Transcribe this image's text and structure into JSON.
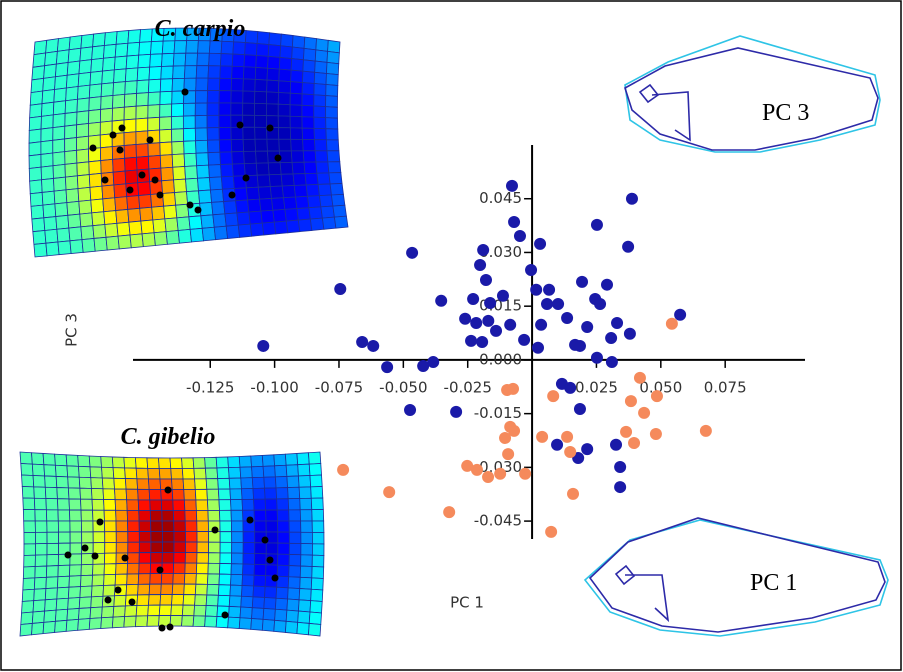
{
  "chart_data": {
    "type": "scatter",
    "x_label": "PC 1",
    "y_label": "PC 3",
    "annotations": [
      "C. carpio",
      "C. gibelio",
      "PC 3",
      "PC 1"
    ],
    "xlim": [
      -0.155,
      0.106
    ],
    "ylim": [
      -0.05,
      0.06
    ],
    "xticks": [
      -0.125,
      {
        "value": -0.1,
        "label": "-0.100"
      },
      -0.075,
      {
        "value": -0.05,
        "label": "-0.050"
      },
      -0.025,
      0.025,
      {
        "value": 0.05,
        "label": "0.050"
      },
      0.075
    ],
    "yticks": [
      0.045,
      {
        "value": 0.03,
        "label": "0.030"
      },
      0.015,
      {
        "value": 0,
        "label": "0.000"
      },
      -0.015,
      {
        "value": -0.03,
        "label": "-0.030"
      },
      -0.045
    ],
    "series": [
      {
        "color": "#1a1aa8",
        "x": [
          -0.1044,
          -0.0745,
          -0.066,
          -0.0617,
          -0.0466,
          -0.0563,
          -0.0423,
          -0.0384,
          -0.0474,
          -0.0353,
          -0.0295,
          -0.026,
          -0.0229,
          -0.0202,
          -0.019,
          -0.0179,
          -0.0163,
          -0.0217,
          -0.017,
          -0.0237,
          -0.0194,
          -0.014,
          -0.0085,
          -0.0113,
          -0.0078,
          -0.007,
          -0.0047,
          0.0031,
          -0.0004,
          0.0016,
          0.0066,
          0.0058,
          0.0101,
          0.0136,
          0.0035,
          -0.0031,
          0.0023,
          0.0252,
          0.0388,
          0.0373,
          0.0194,
          0.0245,
          0.0264,
          0.0291,
          0.0214,
          0.033,
          0.038,
          0.0307,
          0.0167,
          0.0186,
          0.0252,
          0.0116,
          0.0148,
          0.031,
          0.0575,
          0.0097,
          0.0179,
          0.0214,
          0.0342,
          0.0342,
          0.0326,
          0.0186
        ],
        "values": [
          0.0039,
          0.0198,
          0.005,
          0.0039,
          0.0299,
          -0.002,
          -0.0017,
          -0.0006,
          -0.014,
          0.0165,
          -0.0145,
          0.0115,
          0.017,
          0.0265,
          0.0307,
          0.0223,
          0.0159,
          0.0103,
          0.0109,
          0.0053,
          0.005,
          0.0081,
          0.0098,
          0.0179,
          0.0486,
          0.0385,
          0.0346,
          0.0324,
          0.0251,
          0.0196,
          0.0196,
          0.0156,
          0.0156,
          0.0117,
          0.0098,
          0.0056,
          0.0034,
          0.0377,
          0.045,
          0.0316,
          0.0218,
          0.017,
          0.0156,
          0.021,
          0.0092,
          0.0103,
          0.0073,
          0.0061,
          0.0042,
          0.0039,
          0.0006,
          -0.0067,
          -0.0078,
          -0.0006,
          0.0126,
          -0.0237,
          -0.0274,
          -0.0249,
          -0.0299,
          -0.0355,
          -0.0237,
          -0.0137
        ]
      },
      {
        "color": "#f58a5c",
        "x": [
          0.0543,
          0.0419,
          0.0485,
          0.0384,
          0.0435,
          0.0082,
          -0.0097,
          -0.0085,
          -0.007,
          -0.0105,
          0.0039,
          0.0136,
          0.0148,
          0.0365,
          0.0396,
          0.0481,
          0.0675,
          -0.0252,
          -0.0214,
          -0.0171,
          -0.0124,
          -0.0027,
          -0.0093,
          -0.0734,
          -0.0555,
          -0.0322,
          0.0074,
          0.0159,
          -0.0074
        ],
        "values": [
          0.0101,
          -0.005,
          -0.0101,
          -0.0115,
          -0.0148,
          -0.0101,
          -0.0084,
          -0.0187,
          -0.0198,
          -0.0218,
          -0.0215,
          -0.0215,
          -0.0257,
          -0.0201,
          -0.0232,
          -0.0207,
          -0.0198,
          -0.0296,
          -0.0307,
          -0.0327,
          -0.0318,
          -0.0318,
          -0.0263,
          -0.0307,
          -0.0369,
          -0.0425,
          -0.048,
          -0.0374,
          -0.0081
        ]
      }
    ]
  }
}
